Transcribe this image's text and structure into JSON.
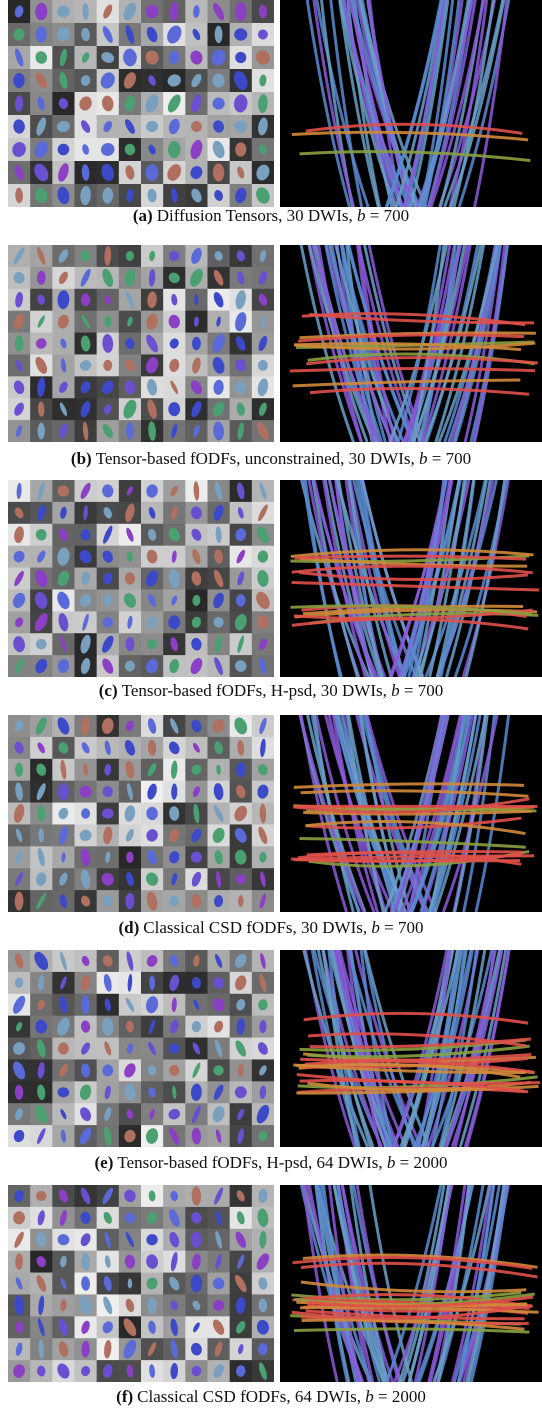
{
  "panels": [
    {
      "label": "(a)",
      "text": "Diffusion Tensors, 30 DWIs,",
      "math_var": "b",
      "math_rest": "= 700"
    },
    {
      "label": "(b)",
      "text": "Tensor-based fODFs, unconstrained, 30 DWIs,",
      "math_var": "b",
      "math_rest": "= 700"
    },
    {
      "label": "(c)",
      "text": "Tensor-based fODFs, H-psd, 30 DWIs,",
      "math_var": "b",
      "math_rest": "= 700"
    },
    {
      "label": "(d)",
      "text": "Classical CSD fODFs, 30 DWIs,",
      "math_var": "b",
      "math_rest": "= 700"
    },
    {
      "label": "(e)",
      "text": "Tensor-based fODFs, H-psd, 64 DWIs,",
      "math_var": "b",
      "math_rest": "= 2000"
    },
    {
      "label": "(f)",
      "text": "Classical CSD fODFs, 64 DWIs,",
      "math_var": "b",
      "math_rest": "= 2000"
    }
  ]
}
